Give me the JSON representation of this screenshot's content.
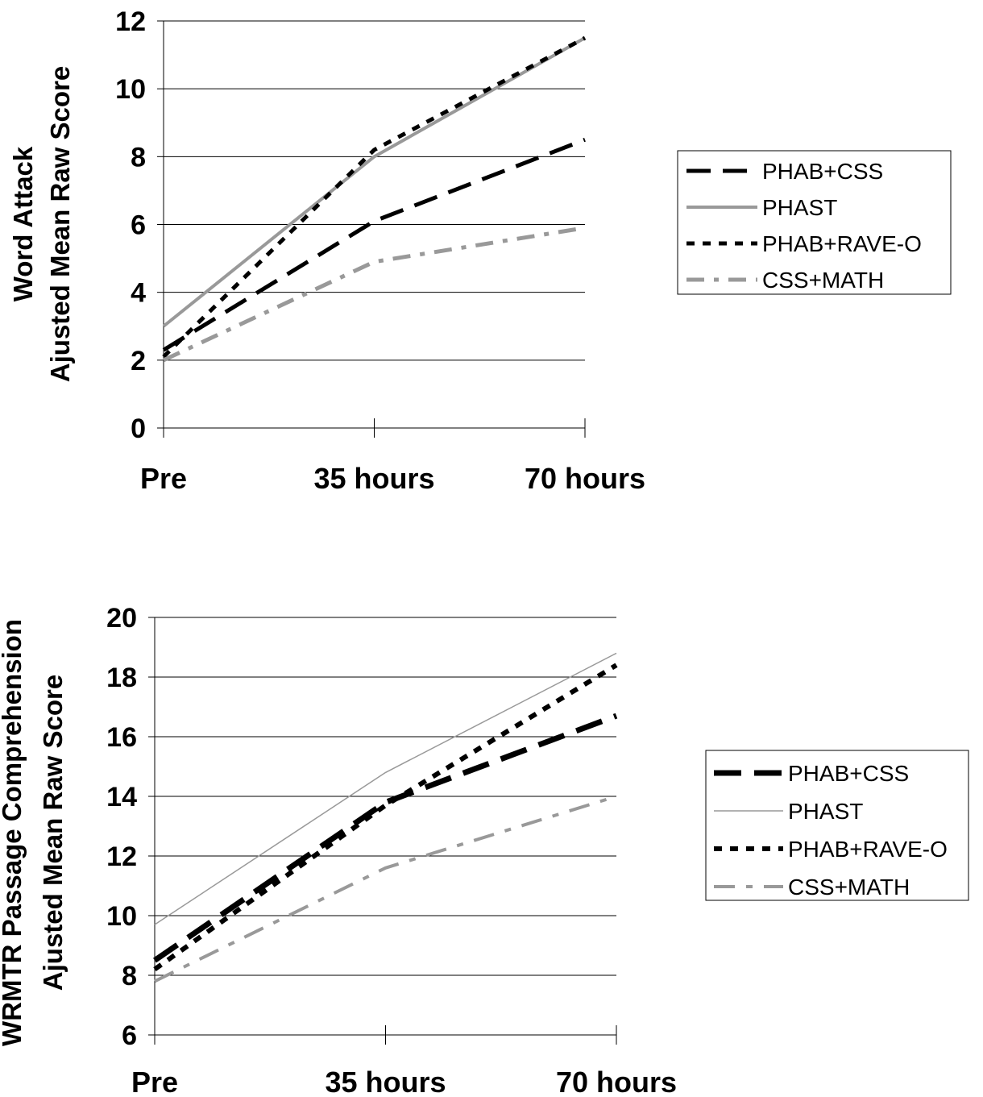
{
  "chart_data": [
    {
      "type": "line",
      "categories": [
        "Pre",
        "35 hours",
        "70 hours"
      ],
      "ylabel_lines": [
        "Word Attack",
        "Ajusted Mean Raw Score"
      ],
      "ylim": [
        0,
        12
      ],
      "yticks": [
        "0",
        "2",
        "4",
        "6",
        "8",
        "10",
        "12"
      ],
      "grid": true,
      "legend_position": "right",
      "series": [
        {
          "name": "PHAB+CSS",
          "values": [
            2.3,
            6.1,
            8.5
          ],
          "color": "#000000"
        },
        {
          "name": "PHAST",
          "values": [
            3.0,
            8.0,
            11.5
          ],
          "color": "#999999"
        },
        {
          "name": "PHAB+RAVE-O",
          "values": [
            2.1,
            8.2,
            11.5
          ],
          "color": "#000000"
        },
        {
          "name": "CSS+MATH",
          "values": [
            2.0,
            4.9,
            5.9
          ],
          "color": "#999999"
        }
      ]
    },
    {
      "type": "line",
      "categories": [
        "Pre",
        "35 hours",
        "70 hours"
      ],
      "ylabel_lines": [
        "WRMTR Passage Comprehension",
        "Ajusted Mean Raw Score"
      ],
      "ylim": [
        6,
        20
      ],
      "yticks": [
        "6",
        "8",
        "10",
        "12",
        "14",
        "16",
        "18",
        "20"
      ],
      "grid": true,
      "legend_position": "right",
      "series": [
        {
          "name": "PHAB+CSS",
          "values": [
            8.5,
            13.8,
            16.7
          ],
          "color": "#000000"
        },
        {
          "name": "PHAST",
          "values": [
            9.7,
            14.8,
            18.8
          ],
          "color": "#999999"
        },
        {
          "name": "PHAB+RAVE-O",
          "values": [
            8.2,
            13.7,
            18.4
          ],
          "color": "#000000"
        },
        {
          "name": "CSS+MATH",
          "values": [
            7.8,
            11.6,
            14.0
          ],
          "color": "#999999"
        }
      ]
    }
  ]
}
